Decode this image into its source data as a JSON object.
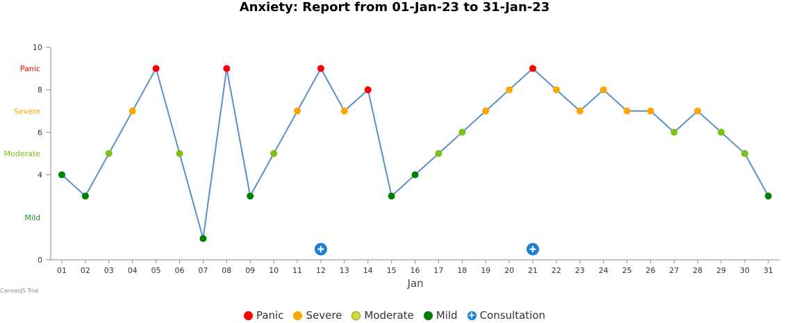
{
  "chart_data": {
    "type": "line",
    "title": "Anxiety: Report from 01-Jan-23 to 31-Jan-23",
    "xlabel": "Jan",
    "ylabel": "",
    "ylim": [
      0,
      10
    ],
    "y_ticks": [
      0,
      4,
      6,
      8,
      10
    ],
    "y_band_labels": [
      {
        "label": "Panic",
        "value": 9,
        "color": "#ff0000"
      },
      {
        "label": "Severe",
        "value": 7,
        "color": "#ffa500"
      },
      {
        "label": "Moderate",
        "value": 5,
        "color": "#7fbf10"
      },
      {
        "label": "Mild",
        "value": 2,
        "color": "#2a8a2a"
      }
    ],
    "grid": false,
    "categories": [
      "01",
      "02",
      "03",
      "04",
      "05",
      "06",
      "07",
      "08",
      "09",
      "10",
      "11",
      "12",
      "13",
      "14",
      "15",
      "16",
      "17",
      "18",
      "19",
      "20",
      "21",
      "22",
      "23",
      "24",
      "25",
      "26",
      "27",
      "28",
      "29",
      "30",
      "31"
    ],
    "series": [
      {
        "name": "Anxiety",
        "line_color": "#5b8fc9",
        "values": [
          4,
          3,
          5,
          7,
          9,
          5,
          1,
          9,
          3,
          5,
          7,
          9,
          7,
          8,
          3,
          4,
          5,
          6,
          7,
          8,
          9,
          8,
          7,
          8,
          7,
          7,
          6,
          7,
          6,
          5,
          3
        ],
        "levels": [
          "Mild",
          "Mild",
          "Moderate",
          "Severe",
          "Panic",
          "Moderate",
          "Mild",
          "Panic",
          "Mild",
          "Moderate",
          "Severe",
          "Panic",
          "Severe",
          "Panic",
          "Mild",
          "Mild",
          "Moderate",
          "Moderate",
          "Severe",
          "Severe",
          "Panic",
          "Severe",
          "Severe",
          "Severe",
          "Severe",
          "Severe",
          "Moderate",
          "Severe",
          "Moderate",
          "Moderate",
          "Mild"
        ]
      },
      {
        "name": "Consultation",
        "days": [
          "12",
          "21"
        ],
        "value": 0.5,
        "color": "#1e7fd6"
      }
    ],
    "level_colors": {
      "Panic": "#ff0000",
      "Severe": "#ffa500",
      "Moderate": "#7fbf10",
      "Mild": "#008000"
    },
    "legend": {
      "placement": "bottom",
      "items": [
        {
          "label": "Panic",
          "color": "#ff0000",
          "marker": "circle"
        },
        {
          "label": "Severe",
          "color": "#ffa500",
          "marker": "circle"
        },
        {
          "label": "Moderate",
          "color": "#cddc39",
          "marker": "circle"
        },
        {
          "label": "Mild",
          "color": "#008000",
          "marker": "circle"
        },
        {
          "label": "Consultation",
          "color": "#1e7fd6",
          "marker": "plus-circle"
        }
      ]
    }
  },
  "watermark": "CanvasJS Trial"
}
